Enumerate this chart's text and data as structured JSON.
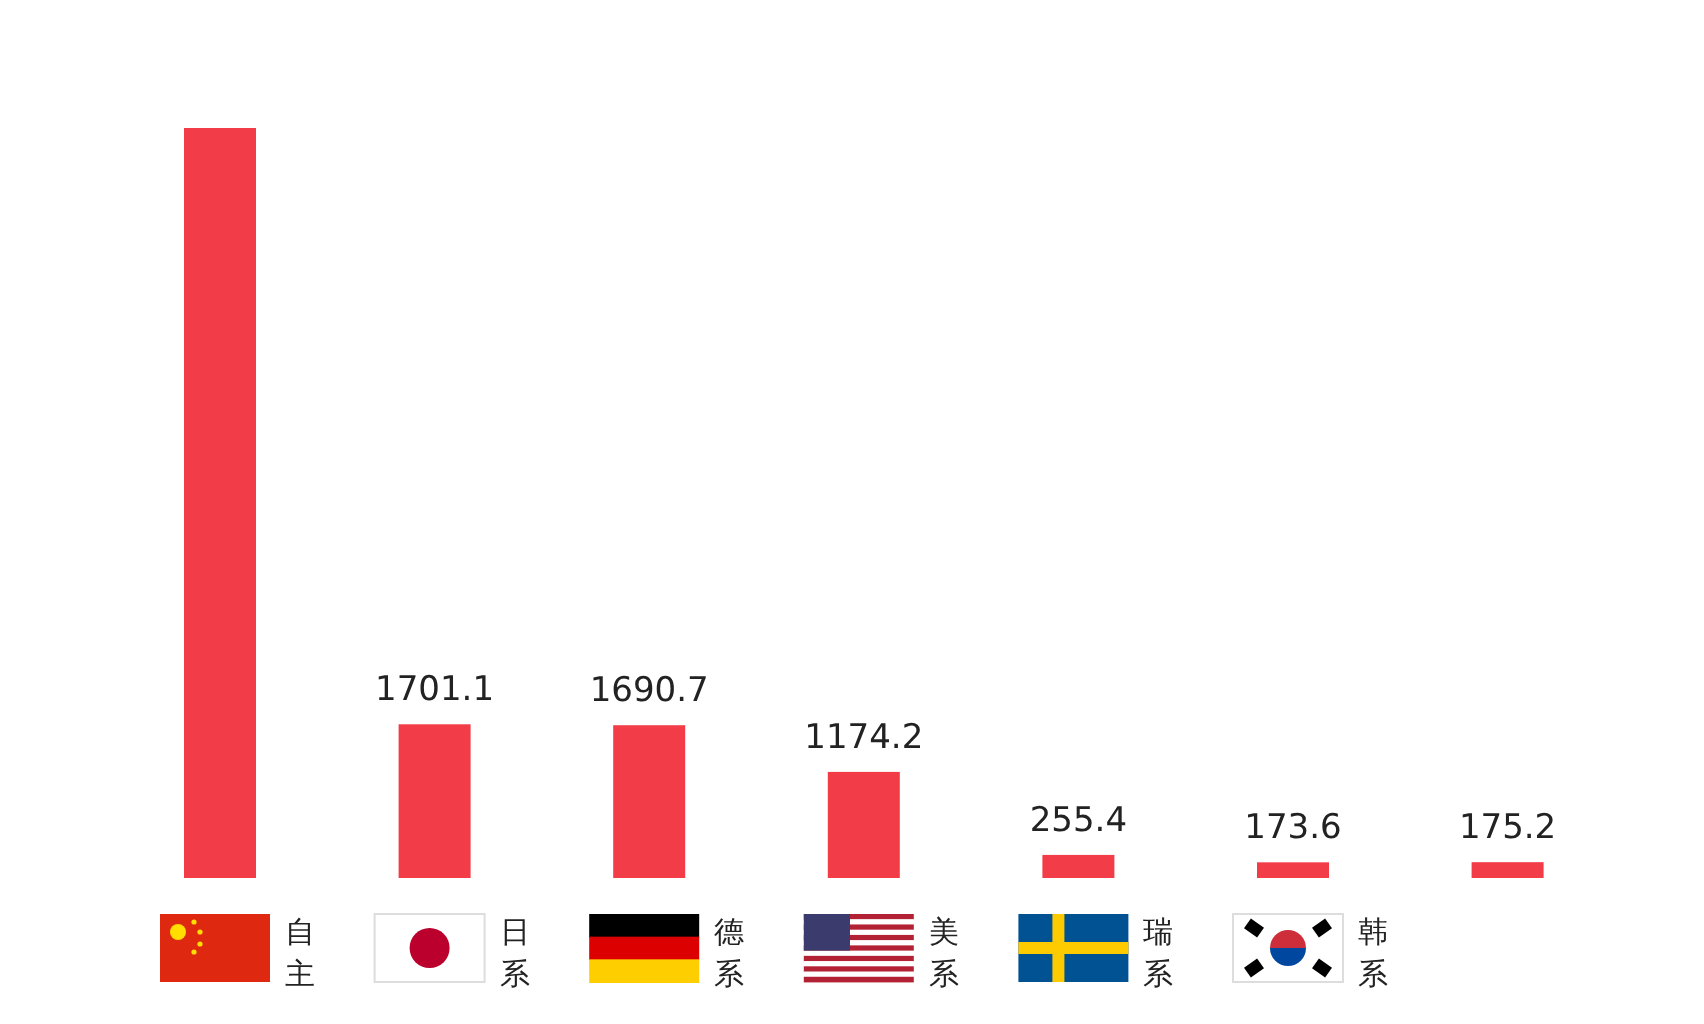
{
  "chart_data": {
    "type": "bar",
    "categories": [
      "自主",
      "日系",
      "德系",
      "美系",
      "瑞系",
      "韩系",
      null
    ],
    "values": [
      8300,
      1701.1,
      1690.7,
      1174.2,
      255.4,
      173.6,
      175.2
    ],
    "value_labels": [
      null,
      "1701.1",
      "1690.7",
      "1174.2",
      "255.4",
      "173.6",
      "175.2"
    ],
    "color": "#f23c48"
  }
}
